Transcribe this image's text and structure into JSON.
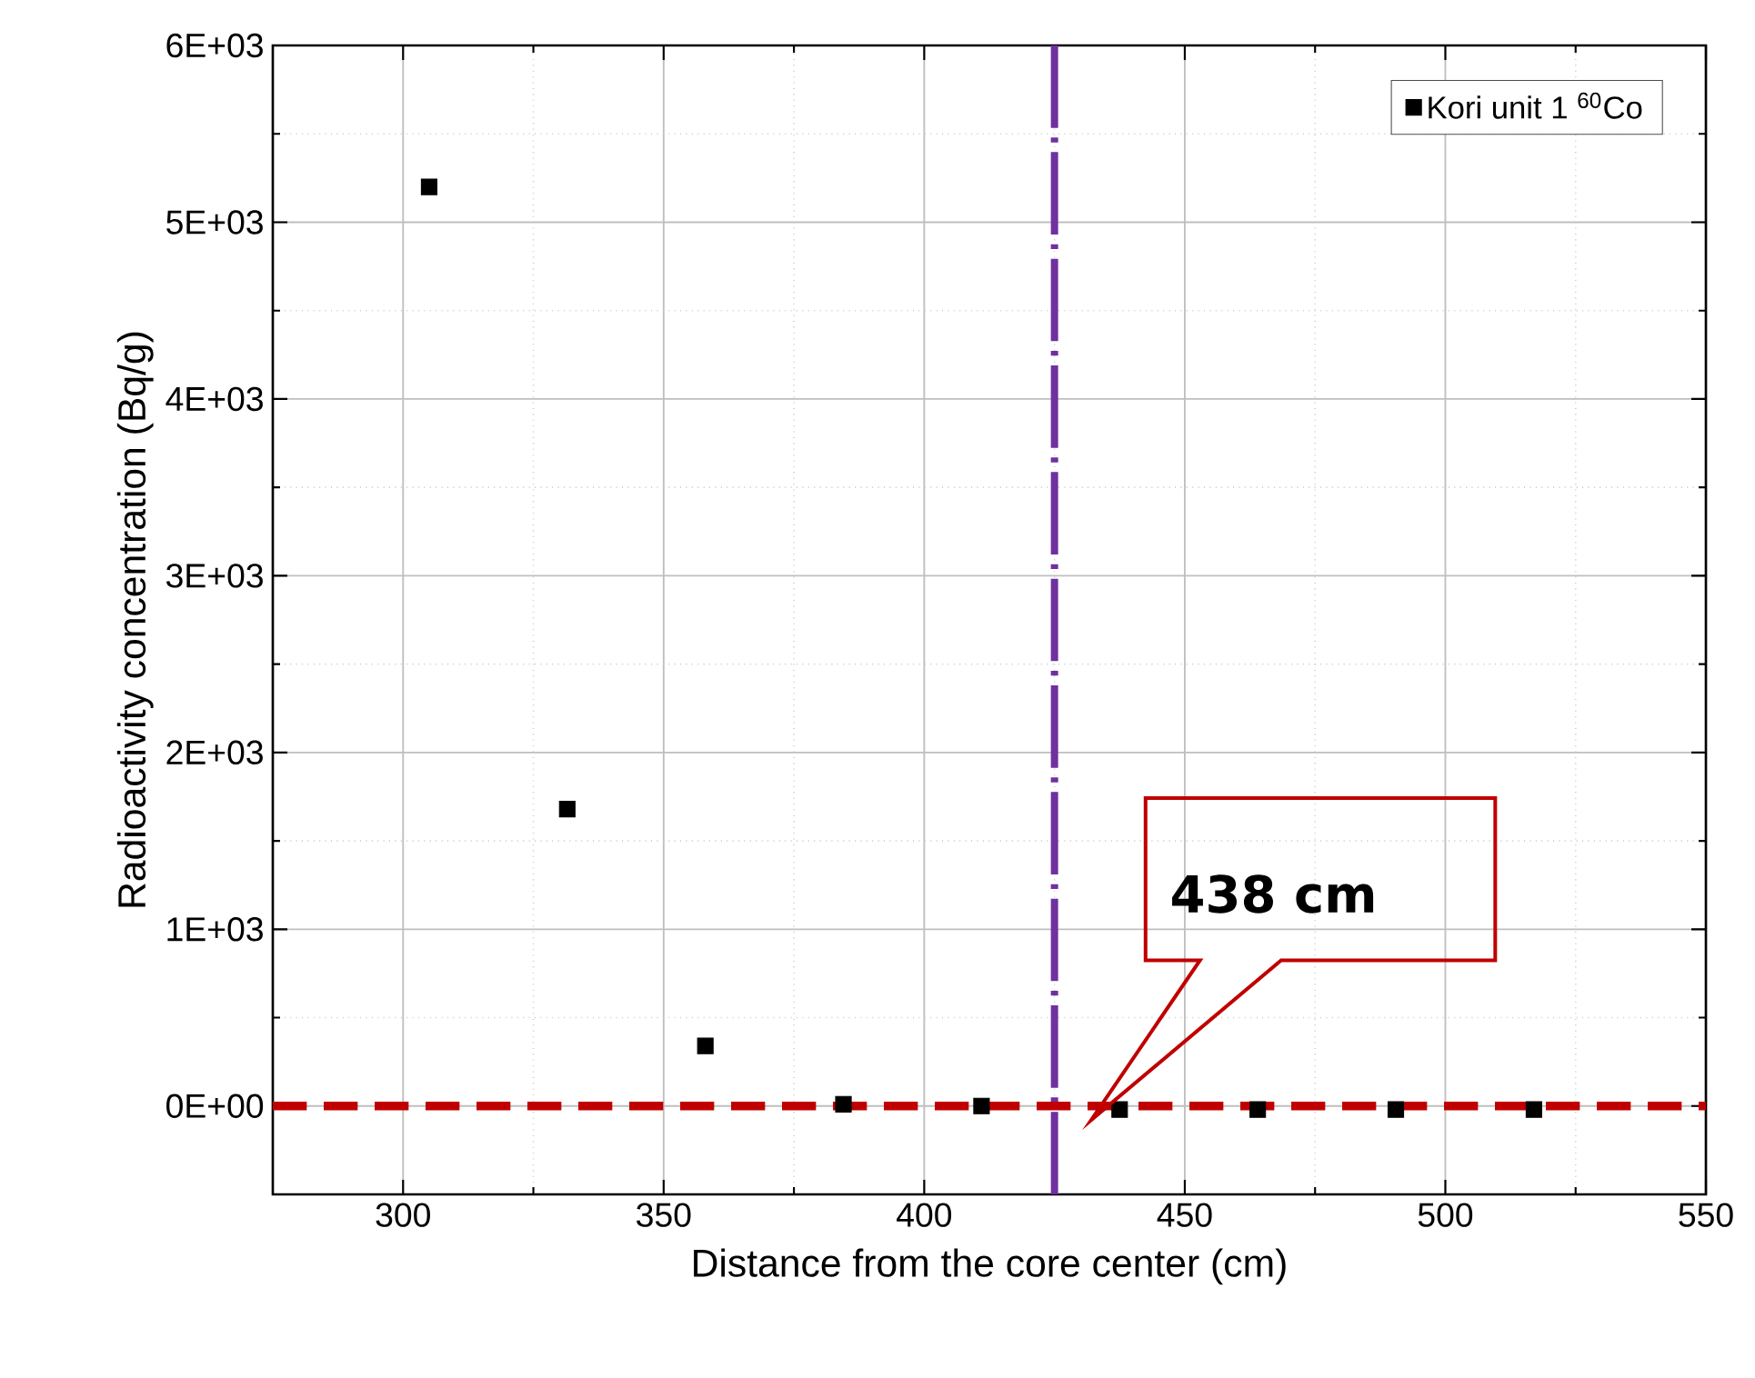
{
  "chart_data": {
    "type": "scatter",
    "xlabel": "Distance from the core center (cm)",
    "ylabel": "Radioactivity concentration (Bq/g)",
    "x": [
      305,
      331.5,
      358,
      384.5,
      411,
      437.5,
      464,
      490.5,
      517
    ],
    "series": [
      {
        "name": "Kori unit 1 $^{60}$Co",
        "color": "#000000",
        "values": [
          5200,
          1680,
          340,
          10,
          0,
          -20,
          -20,
          -20,
          -20
        ]
      }
    ],
    "marker": "square",
    "xlim": [
      275,
      550
    ],
    "xticks": [
      300,
      350,
      400,
      450,
      500,
      550
    ],
    "ylim": [
      -500,
      6000
    ],
    "yticks": [
      {
        "value": 0,
        "label": "0E+00"
      },
      {
        "value": 1000,
        "label": "1E+03"
      },
      {
        "value": 2000,
        "label": "2E+03"
      },
      {
        "value": 3000,
        "label": "3E+03"
      },
      {
        "value": 4000,
        "label": "4E+03"
      },
      {
        "value": 5000,
        "label": "5E+03"
      },
      {
        "value": 6000,
        "label": "6E+03"
      }
    ],
    "grid": true,
    "legend": "top right",
    "ref_lines": [
      {
        "axis": "x",
        "value": 425,
        "color": "#7030a0",
        "line_style": "dashdot"
      },
      {
        "axis": "y",
        "value": 0,
        "color": "#c00000",
        "line_style": "dashed"
      }
    ],
    "annotations": [
      "438 cm"
    ]
  }
}
